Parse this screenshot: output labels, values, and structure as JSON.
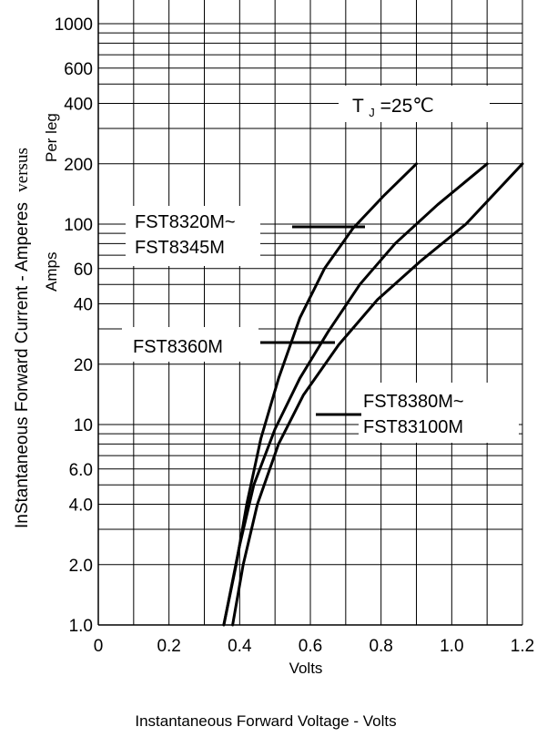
{
  "chart_data": {
    "type": "line",
    "xlabel": "Volts",
    "ylabel": "InStantaneous Forward Current - Amperes",
    "ylabel_suffix": "versus",
    "ylabel_sub1": "Per leg",
    "ylabel_sub2": "Amps",
    "caption": "Instantaneous Forward Voltage - Volts",
    "annotation": {
      "prefix": "T",
      "subscript": "J",
      "suffix": "=25℃"
    },
    "x_scale": "linear",
    "y_scale": "log",
    "xlim": [
      0,
      1.2
    ],
    "ylim": [
      1,
      2000
    ],
    "grid": true,
    "x_ticks": [
      {
        "value": 0,
        "label": "0"
      },
      {
        "value": 0.2,
        "label": "0.2"
      },
      {
        "value": 0.4,
        "label": "0.4"
      },
      {
        "value": 0.6,
        "label": "0.6"
      },
      {
        "value": 0.8,
        "label": "0.8"
      },
      {
        "value": 1.0,
        "label": "1.0"
      },
      {
        "value": 1.2,
        "label": "1.2"
      }
    ],
    "y_ticks": [
      {
        "value": 1,
        "label": "1.0"
      },
      {
        "value": 2,
        "label": "2.0"
      },
      {
        "value": 4,
        "label": "4.0"
      },
      {
        "value": 6,
        "label": "6.0"
      },
      {
        "value": 10,
        "label": "10"
      },
      {
        "value": 20,
        "label": "20"
      },
      {
        "value": 40,
        "label": "40"
      },
      {
        "value": 60,
        "label": "60"
      },
      {
        "value": 100,
        "label": "100"
      },
      {
        "value": 200,
        "label": "200"
      },
      {
        "value": 400,
        "label": "400"
      },
      {
        "value": 600,
        "label": "600"
      },
      {
        "value": 1000,
        "label": "1000"
      }
    ],
    "series": [
      {
        "name": "FST8320M~ FST8345M",
        "label_lines": [
          "FST8320M~",
          "FST8345M"
        ],
        "x": [
          0.355,
          0.39,
          0.42,
          0.46,
          0.51,
          0.57,
          0.64,
          0.72,
          0.81,
          0.9
        ],
        "y": [
          1,
          2,
          4,
          8.5,
          17,
          34,
          60,
          95,
          140,
          200
        ]
      },
      {
        "name": "FST8360M",
        "label_lines": [
          "FST8360M"
        ],
        "x": [
          0.355,
          0.4,
          0.44,
          0.5,
          0.57,
          0.65,
          0.74,
          0.84,
          0.96,
          1.1
        ],
        "y": [
          1,
          2.5,
          5,
          9.5,
          17,
          29,
          50,
          80,
          125,
          200
        ]
      },
      {
        "name": "FST8380M~ FST83100M",
        "label_lines": [
          "FST8380M~",
          "FST83100M"
        ],
        "x": [
          0.38,
          0.41,
          0.45,
          0.51,
          0.58,
          0.68,
          0.79,
          0.91,
          1.04,
          1.2
        ],
        "y": [
          1,
          2,
          4,
          8,
          14,
          25,
          42,
          65,
          100,
          200
        ]
      }
    ]
  }
}
